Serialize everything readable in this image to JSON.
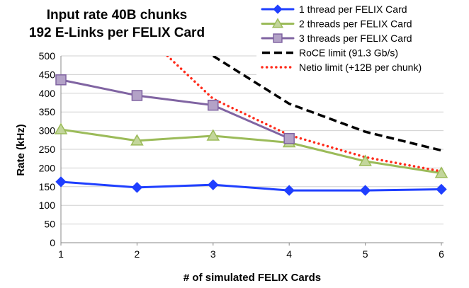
{
  "chart_data": {
    "type": "line",
    "title": "Input rate 40B chunks",
    "subtitle": "192 E-Links per FELIX Card",
    "xlabel": "# of simulated FELIX Cards",
    "ylabel": "Rate (kHz)",
    "x": [
      1,
      2,
      3,
      4,
      5,
      6
    ],
    "x_ticks": [
      "1",
      "2",
      "3",
      "4",
      "5",
      "6"
    ],
    "ylim": [
      0,
      500
    ],
    "y_ticks": [
      "0",
      "50",
      "100",
      "150",
      "200",
      "250",
      "300",
      "350",
      "400",
      "450",
      "500"
    ],
    "grid": "horizontal",
    "legend_position": "top-right",
    "series": [
      {
        "name": "1 thread per FELIX Card",
        "color": "#1f3fff",
        "marker": "diamond",
        "style": "solid",
        "points": [
          [
            1,
            163
          ],
          [
            2,
            148
          ],
          [
            3,
            155
          ],
          [
            4,
            140
          ],
          [
            5,
            140
          ],
          [
            6,
            143
          ]
        ]
      },
      {
        "name": "2 threads per FELIX Card",
        "color": "#9bbb59",
        "marker": "triangle",
        "style": "solid",
        "points": [
          [
            1,
            303
          ],
          [
            2,
            273
          ],
          [
            3,
            286
          ],
          [
            4,
            268
          ],
          [
            5,
            218
          ],
          [
            6,
            186
          ]
        ]
      },
      {
        "name": "3 threads per FELIX Card",
        "color": "#8064a2",
        "marker": "square",
        "style": "solid",
        "points": [
          [
            1,
            436
          ],
          [
            2,
            394
          ],
          [
            3,
            368
          ],
          [
            4,
            279
          ]
        ]
      },
      {
        "name": "RoCE limit (91.3 Gb/s)",
        "color": "#000000",
        "marker": "none",
        "style": "dashed",
        "points": [
          [
            3,
            500
          ],
          [
            4,
            372
          ],
          [
            5,
            297
          ],
          [
            6,
            247
          ]
        ]
      },
      {
        "name": "Netio limit (+12B per chunk)",
        "color": "#ff2a1a",
        "marker": "none",
        "style": "dotted",
        "points": [
          [
            2.4,
            500
          ],
          [
            3,
            385
          ],
          [
            4,
            288
          ],
          [
            5,
            229
          ],
          [
            6,
            191
          ]
        ]
      }
    ]
  }
}
